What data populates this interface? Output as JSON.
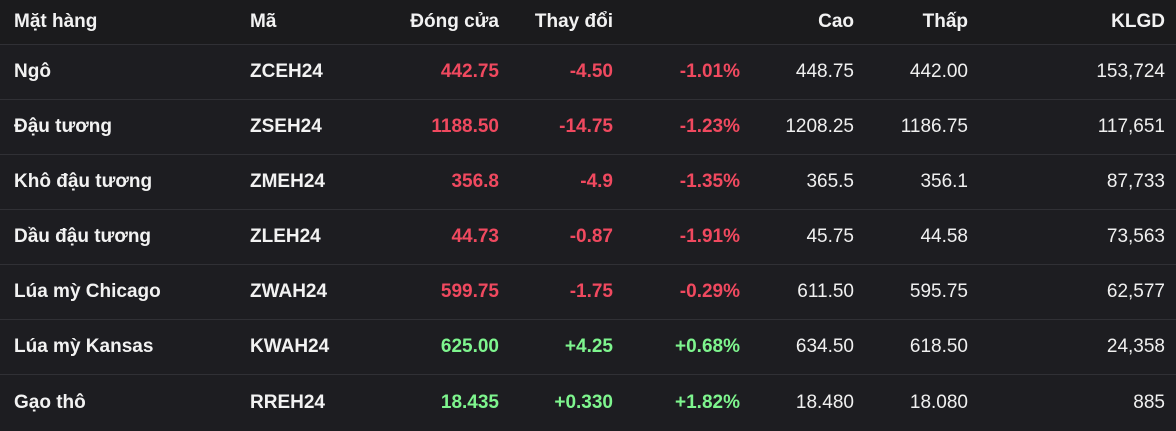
{
  "colors": {
    "negative": "#f0495f",
    "positive": "#7ef58e",
    "background": "#1d1d20",
    "text": "#f2f2f2"
  },
  "header": {
    "name": "Mặt hàng",
    "code": "Mã",
    "close": "Đóng cửa",
    "change": "Thay đổi",
    "high": "Cao",
    "low": "Thấp",
    "volume": "KLGD"
  },
  "rows": [
    {
      "name": "Ngô",
      "code": "ZCEH24",
      "close": "442.75",
      "change": "-4.50",
      "pct": "-1.01%",
      "high": "448.75",
      "low": "442.00",
      "volume": "153,724",
      "direction": "down"
    },
    {
      "name": "Đậu tương",
      "code": "ZSEH24",
      "close": "1188.50",
      "change": "-14.75",
      "pct": "-1.23%",
      "high": "1208.25",
      "low": "1186.75",
      "volume": "117,651",
      "direction": "down"
    },
    {
      "name": "Khô đậu tương",
      "code": "ZMEH24",
      "close": "356.8",
      "change": "-4.9",
      "pct": "-1.35%",
      "high": "365.5",
      "low": "356.1",
      "volume": "87,733",
      "direction": "down"
    },
    {
      "name": "Dầu đậu tương",
      "code": "ZLEH24",
      "close": "44.73",
      "change": "-0.87",
      "pct": "-1.91%",
      "high": "45.75",
      "low": "44.58",
      "volume": "73,563",
      "direction": "down"
    },
    {
      "name": "Lúa mỳ Chicago",
      "code": "ZWAH24",
      "close": "599.75",
      "change": "-1.75",
      "pct": "-0.29%",
      "high": "611.50",
      "low": "595.75",
      "volume": "62,577",
      "direction": "down"
    },
    {
      "name": "Lúa mỳ Kansas",
      "code": "KWAH24",
      "close": "625.00",
      "change": "+4.25",
      "pct": "+0.68%",
      "high": "634.50",
      "low": "618.50",
      "volume": "24,358",
      "direction": "up"
    },
    {
      "name": "Gạo thô",
      "code": "RREH24",
      "close": "18.435",
      "change": "+0.330",
      "pct": "+1.82%",
      "high": "18.480",
      "low": "18.080",
      "volume": "885",
      "direction": "up"
    }
  ]
}
